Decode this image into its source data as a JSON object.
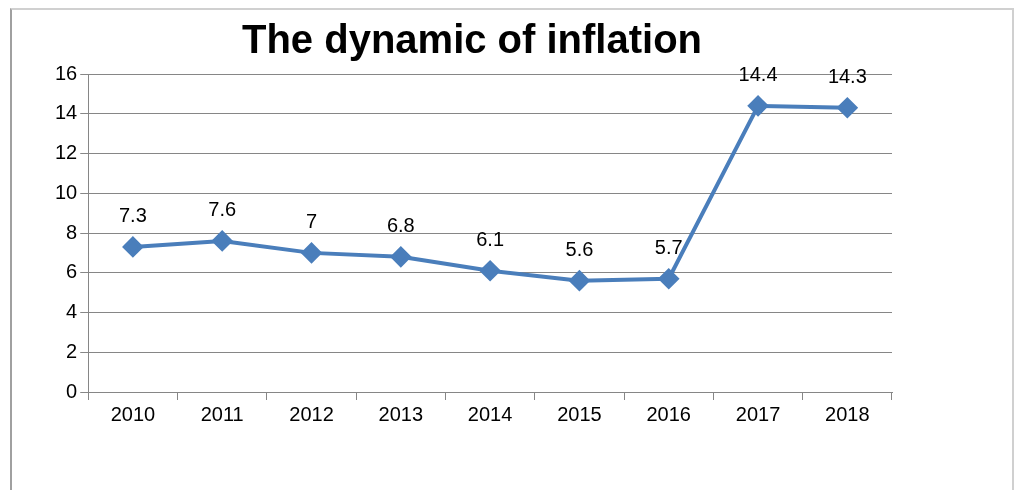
{
  "chart_data": {
    "type": "line",
    "title": "The dynamic of inflation",
    "categories": [
      "2010",
      "2011",
      "2012",
      "2013",
      "2014",
      "2015",
      "2016",
      "2017",
      "2018"
    ],
    "series": [
      {
        "color": "#4a7ebb",
        "values": [
          7.3,
          7.6,
          7,
          6.8,
          6.1,
          5.6,
          5.7,
          14.4,
          14.3
        ]
      }
    ],
    "ylim": [
      0,
      16
    ],
    "yticks": [
      0,
      2,
      4,
      6,
      8,
      10,
      12,
      14,
      16
    ],
    "grid": "y",
    "marker": "diamond",
    "line_style": "solid",
    "data_labels": true,
    "legend": false
  }
}
